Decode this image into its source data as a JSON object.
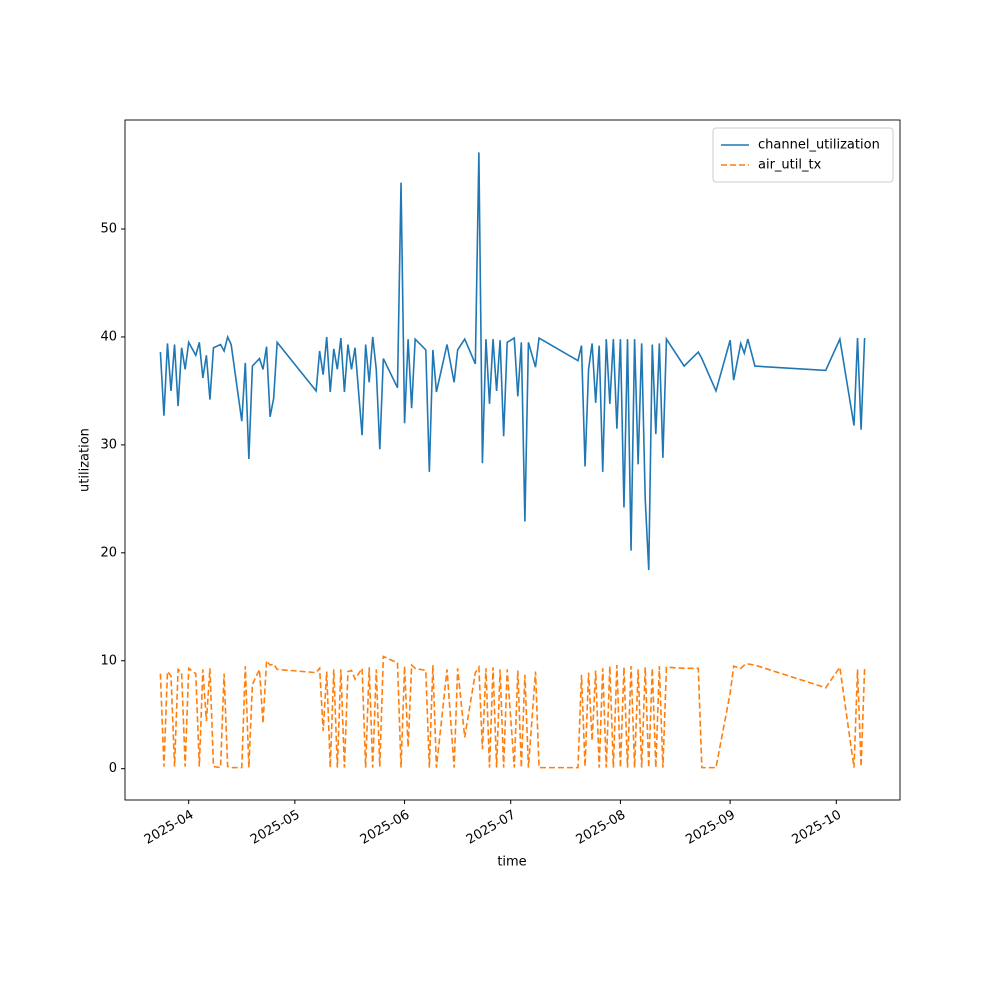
{
  "chart_data": {
    "type": "line",
    "xlabel": "time",
    "ylabel": "utilization",
    "xlim": [
      "2025-03-14",
      "2025-10-19"
    ],
    "xticks": [
      {
        "value": "2025-04-01",
        "label": "2025-04"
      },
      {
        "value": "2025-05-01",
        "label": "2025-05"
      },
      {
        "value": "2025-06-01",
        "label": "2025-06"
      },
      {
        "value": "2025-07-01",
        "label": "2025-07"
      },
      {
        "value": "2025-08-01",
        "label": "2025-08"
      },
      {
        "value": "2025-09-01",
        "label": "2025-09"
      },
      {
        "value": "2025-10-01",
        "label": "2025-10"
      }
    ],
    "ylim": [
      -2.9,
      60.1
    ],
    "yticks": [
      0,
      10,
      20,
      30,
      40,
      50
    ],
    "grid": false,
    "legend": "upper right",
    "x": [
      "2025-03-24",
      "2025-03-25",
      "2025-03-26",
      "2025-03-27",
      "2025-03-28",
      "2025-03-29",
      "2025-03-30",
      "2025-03-31",
      "2025-04-01",
      "2025-04-03",
      "2025-04-04",
      "2025-04-05",
      "2025-04-06",
      "2025-04-07",
      "2025-04-08",
      "2025-04-10",
      "2025-04-11",
      "2025-04-12",
      "2025-04-13",
      "2025-04-16",
      "2025-04-17",
      "2025-04-18",
      "2025-04-19",
      "2025-04-21",
      "2025-04-22",
      "2025-04-23",
      "2025-04-24",
      "2025-04-25",
      "2025-04-26",
      "2025-05-07",
      "2025-05-08",
      "2025-05-09",
      "2025-05-10",
      "2025-05-11",
      "2025-05-12",
      "2025-05-13",
      "2025-05-14",
      "2025-05-15",
      "2025-05-16",
      "2025-05-17",
      "2025-05-18",
      "2025-05-20",
      "2025-05-21",
      "2025-05-22",
      "2025-05-23",
      "2025-05-24",
      "2025-05-25",
      "2025-05-26",
      "2025-05-30",
      "2025-05-31",
      "2025-06-01",
      "2025-06-02",
      "2025-06-03",
      "2025-06-04",
      "2025-06-07",
      "2025-06-08",
      "2025-06-09",
      "2025-06-10",
      "2025-06-13",
      "2025-06-15",
      "2025-06-16",
      "2025-06-18",
      "2025-06-21",
      "2025-06-22",
      "2025-06-23",
      "2025-06-24",
      "2025-06-25",
      "2025-06-26",
      "2025-06-27",
      "2025-06-28",
      "2025-06-29",
      "2025-06-30",
      "2025-07-02",
      "2025-07-03",
      "2025-07-04",
      "2025-07-05",
      "2025-07-06",
      "2025-07-08",
      "2025-07-09",
      "2025-07-20",
      "2025-07-21",
      "2025-07-22",
      "2025-07-23",
      "2025-07-24",
      "2025-07-25",
      "2025-07-26",
      "2025-07-27",
      "2025-07-28",
      "2025-07-29",
      "2025-07-30",
      "2025-07-31",
      "2025-08-01",
      "2025-08-02",
      "2025-08-03",
      "2025-08-04",
      "2025-08-05",
      "2025-08-06",
      "2025-08-07",
      "2025-08-08",
      "2025-08-09",
      "2025-08-10",
      "2025-08-11",
      "2025-08-12",
      "2025-08-13",
      "2025-08-14",
      "2025-08-19",
      "2025-08-23",
      "2025-08-24",
      "2025-08-28",
      "2025-09-01",
      "2025-09-02",
      "2025-09-04",
      "2025-09-05",
      "2025-09-06",
      "2025-09-08",
      "2025-09-28",
      "2025-10-02",
      "2025-10-06",
      "2025-10-07",
      "2025-10-08",
      "2025-10-09"
    ],
    "series": [
      {
        "name": "channel_utilization",
        "color": "#1f77b4",
        "linestyle": "solid",
        "values": [
          38.6,
          32.7,
          39.4,
          35.0,
          39.3,
          33.6,
          39.0,
          37.0,
          39.5,
          38.3,
          39.5,
          36.2,
          38.3,
          34.2,
          39.0,
          39.3,
          38.7,
          40.0,
          39.3,
          32.2,
          37.6,
          28.7,
          37.3,
          38.0,
          37.0,
          39.1,
          32.6,
          34.3,
          39.5,
          35.0,
          38.7,
          36.5,
          40.0,
          34.9,
          38.9,
          37.0,
          39.9,
          34.9,
          39.3,
          37.0,
          39.0,
          30.9,
          39.3,
          35.8,
          40.0,
          37.0,
          29.6,
          38.0,
          35.3,
          54.3,
          32.0,
          39.8,
          33.4,
          39.8,
          38.8,
          27.5,
          38.8,
          34.9,
          39.3,
          35.8,
          38.8,
          39.8,
          37.5,
          57.1,
          28.3,
          39.8,
          33.8,
          39.8,
          35.0,
          39.7,
          30.8,
          39.5,
          39.9,
          34.5,
          39.5,
          22.9,
          39.5,
          37.2,
          39.9,
          37.8,
          39.2,
          28.0,
          37.0,
          39.4,
          33.9,
          39.2,
          27.5,
          39.8,
          33.8,
          39.8,
          31.5,
          39.8,
          24.2,
          39.8,
          20.2,
          39.8,
          28.2,
          39.4,
          25.0,
          18.4,
          39.3,
          31.0,
          39.4,
          28.8,
          39.8,
          37.3,
          38.6,
          38.0,
          35.0,
          39.7,
          36.0,
          39.4,
          38.5,
          39.8,
          37.3,
          36.9,
          39.8,
          31.8,
          39.9,
          31.4,
          39.9
        ]
      },
      {
        "name": "air_util_tx",
        "color": "#ff7f0e",
        "linestyle": "dashed",
        "values": [
          8.8,
          0.2,
          9.0,
          8.6,
          0.2,
          9.2,
          8.9,
          0.2,
          9.3,
          8.8,
          0.2,
          9.2,
          4.4,
          9.3,
          0.2,
          0.1,
          8.8,
          0.2,
          0.1,
          0.1,
          9.5,
          0.1,
          7.8,
          9.2,
          4.2,
          10.0,
          9.6,
          9.7,
          9.2,
          8.9,
          9.3,
          3.5,
          9.0,
          0.1,
          9.2,
          0.1,
          9.2,
          0.1,
          9.0,
          9.1,
          8.3,
          9.3,
          0.1,
          9.4,
          0.1,
          9.2,
          0.2,
          10.4,
          9.8,
          0.1,
          9.5,
          2.0,
          9.6,
          9.3,
          9.1,
          0.1,
          9.6,
          0.1,
          9.2,
          0.1,
          9.3,
          2.9,
          8.9,
          9.4,
          1.8,
          9.3,
          0.1,
          9.4,
          0.1,
          9.2,
          0.1,
          9.2,
          0.1,
          9.1,
          0.1,
          8.7,
          0.1,
          9.0,
          0.1,
          0.1,
          8.7,
          0.2,
          8.9,
          2.6,
          9.1,
          0.1,
          9.3,
          0.1,
          9.5,
          0.1,
          9.6,
          0.1,
          9.4,
          0.1,
          9.5,
          0.1,
          9.2,
          0.1,
          9.4,
          0.1,
          9.3,
          0.1,
          9.5,
          0.1,
          9.4,
          9.3,
          9.3,
          0.1,
          0.1,
          7.0,
          9.5,
          9.3,
          9.6,
          9.7,
          9.6,
          7.5,
          9.4,
          0.1,
          9.2,
          0.2,
          9.3
        ]
      }
    ]
  }
}
